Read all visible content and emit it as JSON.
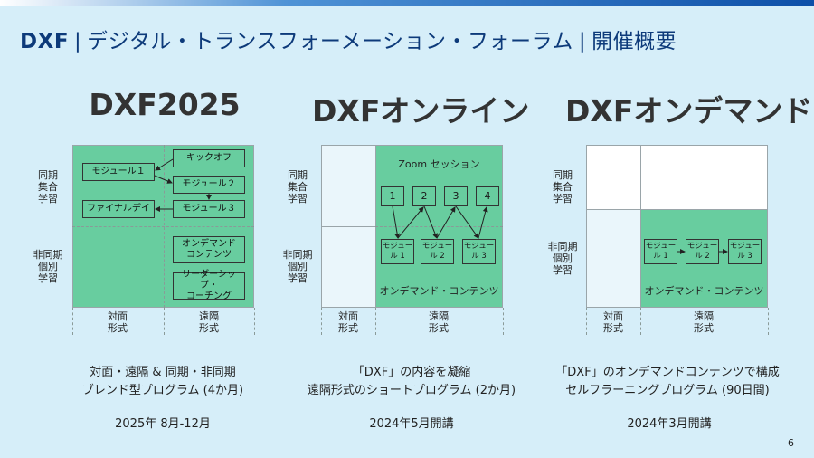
{
  "title": {
    "brand": "DXF",
    "sep": "|",
    "text": "デジタル・トランスフォーメーション・フォーラム",
    "sep2": "|",
    "section": "開催概要"
  },
  "axis": {
    "sync_group": "同期\n集合\n学習",
    "async_individual": "非同期\n個別\n学習",
    "face_to_face": "対面\n形式",
    "remote": "遠隔\n形式"
  },
  "panels": [
    {
      "heading": "DXF2025",
      "modules": {
        "kickoff": "キックオフ",
        "module1": "モジュール１",
        "module2": "モジュール２",
        "module3": "モジュール３",
        "finalday": "ファイナルデイ",
        "ondemand": "オンデマンド\nコンテンツ",
        "leadership": "リーダーシップ・\nコーチング"
      },
      "desc": "対面・遠隔 & 同期・非同期\nブレンド型プログラム (4か月)",
      "date": "2025年 8月-12月"
    },
    {
      "heading": "DXFオンライン",
      "zoom_label": "Zoom セッション",
      "sessions": [
        "1",
        "2",
        "3",
        "4"
      ],
      "modules": [
        "モジュー\nル 1",
        "モジュー\nル 2",
        "モジュー\nル 3"
      ],
      "contents_label": "オンデマンド・コンテンツ",
      "desc": "「DXF」の内容を凝縮\n遠隔形式のショートプログラム (2か月)",
      "date": "2024年5月開講"
    },
    {
      "heading": "DXFオンデマンド",
      "modules": [
        "モジュー\nル 1",
        "モジュー\nル 2",
        "モジュー\nル 3"
      ],
      "contents_label": "オンデマンド・コンテンツ",
      "desc": "「DXF」のオンデマンドコンテンツで構成\nセルフラーニングプログラム (90日間)",
      "date": "2024年3月開講"
    }
  ],
  "page_number": "6",
  "colors": {
    "accent": "#0d3a7a",
    "green": "#68cd9f",
    "background": "#d6eef9"
  }
}
